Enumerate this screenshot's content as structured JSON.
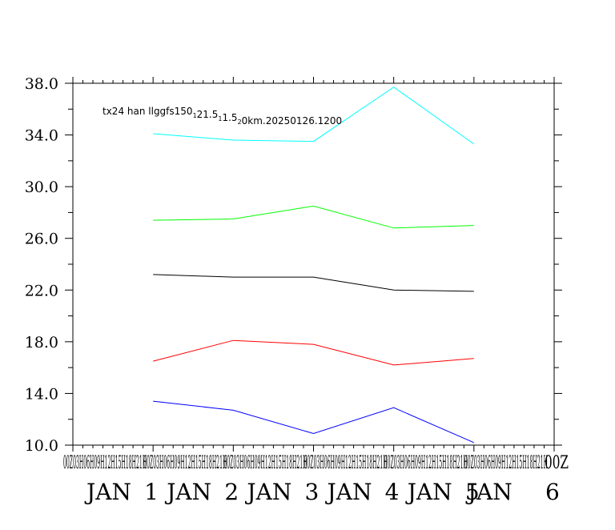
{
  "chart_data": {
    "type": "line",
    "caption": {
      "parts": [
        {
          "t": "tx24 han llggfs150",
          "sub": false
        },
        {
          "t": "1",
          "sub": true
        },
        {
          "t": "21.5",
          "sub": false
        },
        {
          "t": "1",
          "sub": true
        },
        {
          "t": "1.5",
          "sub": false
        },
        {
          "t": "2",
          "sub": true
        },
        {
          "t": "0km.20250126.1200",
          "sub": false
        }
      ]
    },
    "x": [
      1,
      2,
      3,
      4,
      5
    ],
    "xlim": [
      0,
      6
    ],
    "ylim": [
      10,
      38
    ],
    "yticks": [
      "10.0",
      "14.0",
      "18.0",
      "22.0",
      "26.0",
      "30.0",
      "34.0",
      "38.0"
    ],
    "xtick_row1": [
      "00Z03H06H09H12H15H18H21H",
      "00Z03H06H09H12H15H18H21H",
      "00Z03H06H09H12H15H18H21H",
      "00Z03H06H09H12H15H18H21H",
      "00Z03H06H09H12H15H18H21H",
      "00Z03H06H09H12H15H18H21H",
      "00Z"
    ],
    "xtick_row2": [
      {
        "text": "JAN",
        "x": 0.25
      },
      {
        "text": "1",
        "x": 0.97
      },
      {
        "text": "JAN",
        "x": 1.25
      },
      {
        "text": "2",
        "x": 1.97
      },
      {
        "text": "JAN",
        "x": 2.25
      },
      {
        "text": "3",
        "x": 2.97
      },
      {
        "text": "JAN",
        "x": 3.25
      },
      {
        "text": "4",
        "x": 3.97
      },
      {
        "text": "JAN",
        "x": 4.25
      },
      {
        "text": "5",
        "x": 4.97
      },
      {
        "text": "JAN",
        "x": 5.0
      },
      {
        "text": "6",
        "x": 5.97
      }
    ],
    "series": [
      {
        "color": "#00ffff",
        "values": [
          34.1,
          33.6,
          33.5,
          37.7,
          33.3
        ]
      },
      {
        "color": "#00ff00",
        "values": [
          27.4,
          27.5,
          28.5,
          26.8,
          27.0
        ]
      },
      {
        "color": "#000000",
        "values": [
          23.2,
          23.0,
          23.0,
          22.0,
          21.9
        ]
      },
      {
        "color": "#ff0000",
        "values": [
          16.5,
          18.1,
          17.8,
          16.2,
          16.7
        ]
      },
      {
        "color": "#0000ff",
        "values": [
          13.4,
          12.7,
          10.9,
          12.9,
          10.2
        ]
      }
    ]
  }
}
